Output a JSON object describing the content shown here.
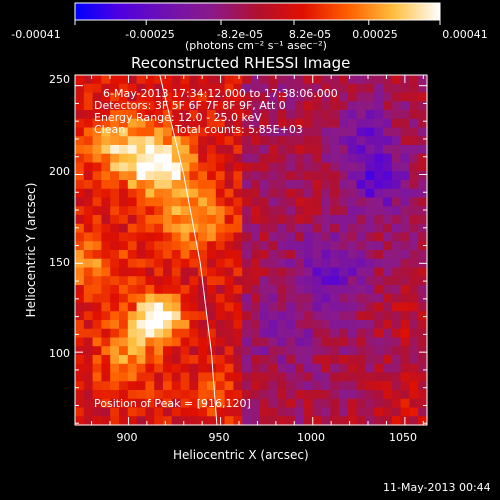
{
  "chart_data": {
    "type": "heatmap",
    "title": "Reconstructed RHESSI Image",
    "xlabel": "Heliocentric X (arcsec)",
    "ylabel": "Heliocentric Y (arcsec)",
    "xlim": [
      871,
      1062
    ],
    "ylim": [
      59,
      256
    ],
    "x_ticks": [
      {
        "value": 900,
        "label": "900"
      },
      {
        "value": 950,
        "label": "950"
      },
      {
        "value": 1000,
        "label": "1000"
      },
      {
        "value": 1050,
        "label": "1050"
      }
    ],
    "y_ticks": [
      {
        "value": 100,
        "label": "100"
      },
      {
        "value": 150,
        "label": "150"
      },
      {
        "value": 200,
        "label": "200"
      },
      {
        "value": 250,
        "label": "250"
      }
    ],
    "colorbar": {
      "min": -0.00041,
      "max": 0.00041,
      "unit_label": "(photons cm⁻² s⁻¹ asec⁻²)",
      "ticks": [
        {
          "value": -0.00041,
          "label": "-0.00041"
        },
        {
          "value": -0.00025,
          "label": "-0.00025"
        },
        {
          "value": -8.2e-05,
          "label": "-8.2e-05"
        },
        {
          "value": 8.2e-05,
          "label": "8.2e-05"
        },
        {
          "value": 0.00025,
          "label": "0.00025"
        },
        {
          "value": 0.00041,
          "label": "0.00041"
        }
      ],
      "colors": [
        "#0000ff",
        "#5000e0",
        "#7010b0",
        "#8a1a8a",
        "#b01030",
        "#e01000",
        "#ff6000",
        "#ffc040",
        "#ffffff"
      ]
    },
    "annotations": {
      "time_range": "6-May-2013 17:34:12.000 to 17:38:06.000",
      "detectors": "Detectors: 3F 5F 6F 7F 8F 9F, Att 0",
      "energy": "Energy Range: 12.0 - 25.0 keV",
      "method": "Clean",
      "counts": "Total counts: 5.85E+03",
      "peak": "Position of Peak = [916,120]"
    },
    "limb_curve": [
      [
        917,
        256
      ],
      [
        930,
        200
      ],
      [
        939,
        150
      ],
      [
        945,
        100
      ],
      [
        948,
        59
      ]
    ],
    "peak": {
      "x": 916,
      "y": 120
    },
    "features": [
      {
        "x": 917,
        "y": 120,
        "amp": 0.0004,
        "sigma": 9
      },
      {
        "x": 918,
        "y": 205,
        "amp": 0.00033,
        "sigma": 12
      },
      {
        "x": 895,
        "y": 215,
        "amp": 0.00022,
        "sigma": 14
      },
      {
        "x": 935,
        "y": 175,
        "amp": 0.00018,
        "sigma": 15
      },
      {
        "x": 880,
        "y": 150,
        "amp": 0.00015,
        "sigma": 14
      },
      {
        "x": 900,
        "y": 100,
        "amp": 0.00017,
        "sigma": 14
      },
      {
        "x": 945,
        "y": 75,
        "amp": 0.00012,
        "sigma": 10
      },
      {
        "x": 1048,
        "y": 70,
        "amp": 0.0001,
        "sigma": 12
      },
      {
        "x": 1050,
        "y": 115,
        "amp": 6e-05,
        "sigma": 10
      },
      {
        "x": 1035,
        "y": 197,
        "amp": -0.00024,
        "sigma": 12
      },
      {
        "x": 1010,
        "y": 145,
        "amp": -0.00018,
        "sigma": 14
      },
      {
        "x": 1028,
        "y": 225,
        "amp": -0.00016,
        "sigma": 10
      },
      {
        "x": 985,
        "y": 110,
        "amp": -0.0001,
        "sigma": 14
      }
    ]
  },
  "footer_date": "11-May-2013 00:44"
}
